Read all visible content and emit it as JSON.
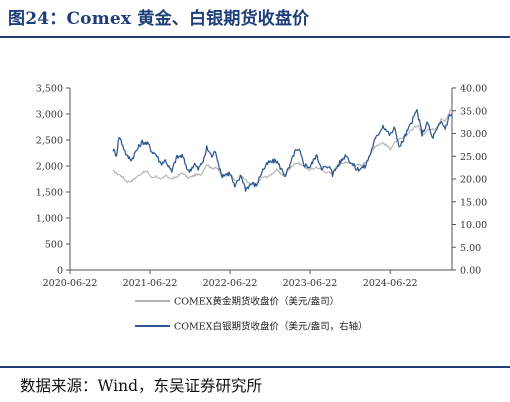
{
  "figure": {
    "title": "图24：Comex 黄金、白银期货收盘价",
    "source": "数据来源：Wind，东吴证券研究所"
  },
  "colors": {
    "gold_series": "#b3b3b3",
    "silver_series": "#2d5791",
    "title": "#1f3f7a",
    "axis": "#555555"
  },
  "chart_data": {
    "type": "line",
    "title": "",
    "xlabel": "",
    "ylabel": "",
    "y_left": {
      "min": 0,
      "max": 3500,
      "ticks": [
        0,
        500,
        1000,
        1500,
        2000,
        2500,
        3000,
        3500
      ],
      "tick_labels": [
        "0",
        "500",
        "1,000",
        "1,500",
        "2,000",
        "2,500",
        "3,000",
        "3,500"
      ]
    },
    "y_right": {
      "min": 0,
      "max": 40,
      "ticks": [
        0,
        5,
        10,
        15,
        20,
        25,
        30,
        35,
        40
      ],
      "tick_labels": [
        "0.00",
        "5.00",
        "10.00",
        "15.00",
        "20.00",
        "25.00",
        "30.00",
        "35.00",
        "40.00"
      ]
    },
    "x_axis": {
      "min": "2020-06-22",
      "max": "2025-03-31",
      "ticks": [
        "2020-06-22",
        "2021-06-22",
        "2022-06-22",
        "2023-06-22",
        "2024-06-22"
      ]
    },
    "legend_position": "bottom",
    "grid": false,
    "series": [
      {
        "name": "COMEX黄金期货收盘价（美元/盎司）",
        "axis": "left",
        "color": "#b3b3b3",
        "points": [
          [
            "2021-01-04",
            1900
          ],
          [
            "2021-01-25",
            1850
          ],
          [
            "2021-02-15",
            1800
          ],
          [
            "2021-03-08",
            1700
          ],
          [
            "2021-03-31",
            1715
          ],
          [
            "2021-04-20",
            1780
          ],
          [
            "2021-05-20",
            1880
          ],
          [
            "2021-06-10",
            1890
          ],
          [
            "2021-06-30",
            1770
          ],
          [
            "2021-07-20",
            1810
          ],
          [
            "2021-08-10",
            1730
          ],
          [
            "2021-09-01",
            1815
          ],
          [
            "2021-09-30",
            1755
          ],
          [
            "2021-10-20",
            1785
          ],
          [
            "2021-11-16",
            1870
          ],
          [
            "2021-12-15",
            1765
          ],
          [
            "2022-01-12",
            1825
          ],
          [
            "2022-02-10",
            1835
          ],
          [
            "2022-03-08",
            2040
          ],
          [
            "2022-03-31",
            1950
          ],
          [
            "2022-04-18",
            1985
          ],
          [
            "2022-05-16",
            1815
          ],
          [
            "2022-06-22",
            1840
          ],
          [
            "2022-07-20",
            1700
          ],
          [
            "2022-08-15",
            1790
          ],
          [
            "2022-09-27",
            1630
          ],
          [
            "2022-10-20",
            1640
          ],
          [
            "2022-11-15",
            1780
          ],
          [
            "2022-12-15",
            1800
          ],
          [
            "2023-01-20",
            1925
          ],
          [
            "2023-02-24",
            1810
          ],
          [
            "2023-03-15",
            1920
          ],
          [
            "2023-04-13",
            2055
          ],
          [
            "2023-05-04",
            2050
          ],
          [
            "2023-06-22",
            1920
          ],
          [
            "2023-07-20",
            1980
          ],
          [
            "2023-08-21",
            1900
          ],
          [
            "2023-09-29",
            1865
          ],
          [
            "2023-10-27",
            2010
          ],
          [
            "2023-12-04",
            2080
          ],
          [
            "2024-01-20",
            2020
          ],
          [
            "2024-02-14",
            2005
          ],
          [
            "2024-03-21",
            2180
          ],
          [
            "2024-04-12",
            2380
          ],
          [
            "2024-05-20",
            2450
          ],
          [
            "2024-06-22",
            2330
          ],
          [
            "2024-07-17",
            2470
          ],
          [
            "2024-08-20",
            2540
          ],
          [
            "2024-09-26",
            2690
          ],
          [
            "2024-10-30",
            2800
          ],
          [
            "2024-11-14",
            2570
          ],
          [
            "2024-12-11",
            2720
          ],
          [
            "2025-01-15",
            2700
          ],
          [
            "2025-02-10",
            2910
          ],
          [
            "2025-02-28",
            2860
          ],
          [
            "2025-03-20",
            3050
          ],
          [
            "2025-03-31",
            3120
          ]
        ]
      },
      {
        "name": "COMEX白银期货收盘价（美元/盎司，右轴）",
        "axis": "right",
        "color": "#2d5791",
        "points": [
          [
            "2021-01-04",
            26.5
          ],
          [
            "2021-01-20",
            25.3
          ],
          [
            "2021-02-01",
            29.4
          ],
          [
            "2021-02-18",
            27.4
          ],
          [
            "2021-03-08",
            25.0
          ],
          [
            "2021-03-31",
            24.3
          ],
          [
            "2021-04-20",
            26.2
          ],
          [
            "2021-05-18",
            28.2
          ],
          [
            "2021-06-15",
            27.6
          ],
          [
            "2021-06-30",
            26.1
          ],
          [
            "2021-07-20",
            25.4
          ],
          [
            "2021-08-10",
            23.4
          ],
          [
            "2021-09-01",
            24.1
          ],
          [
            "2021-09-29",
            21.5
          ],
          [
            "2021-10-20",
            24.7
          ],
          [
            "2021-11-16",
            25.1
          ],
          [
            "2021-12-15",
            21.6
          ],
          [
            "2022-01-12",
            23.3
          ],
          [
            "2022-01-28",
            22.1
          ],
          [
            "2022-02-24",
            24.4
          ],
          [
            "2022-03-08",
            26.9
          ],
          [
            "2022-03-31",
            25.0
          ],
          [
            "2022-04-18",
            26.1
          ],
          [
            "2022-05-13",
            20.8
          ],
          [
            "2022-06-22",
            21.3
          ],
          [
            "2022-07-14",
            18.2
          ],
          [
            "2022-08-12",
            20.8
          ],
          [
            "2022-09-01",
            17.8
          ],
          [
            "2022-09-30",
            19.1
          ],
          [
            "2022-10-20",
            18.5
          ],
          [
            "2022-11-15",
            21.7
          ],
          [
            "2022-12-15",
            23.6
          ],
          [
            "2023-01-20",
            24.0
          ],
          [
            "2023-02-28",
            20.8
          ],
          [
            "2023-03-20",
            22.5
          ],
          [
            "2023-04-13",
            26.0
          ],
          [
            "2023-05-04",
            26.2
          ],
          [
            "2023-05-26",
            23.2
          ],
          [
            "2023-06-22",
            22.6
          ],
          [
            "2023-07-20",
            25.2
          ],
          [
            "2023-08-14",
            22.6
          ],
          [
            "2023-09-29",
            22.3
          ],
          [
            "2023-10-03",
            21.0
          ],
          [
            "2023-10-27",
            23.0
          ],
          [
            "2023-12-04",
            25.4
          ],
          [
            "2023-12-20",
            24.0
          ],
          [
            "2024-01-22",
            22.1
          ],
          [
            "2024-02-28",
            22.7
          ],
          [
            "2024-03-21",
            25.3
          ],
          [
            "2024-04-12",
            28.4
          ],
          [
            "2024-05-20",
            31.8
          ],
          [
            "2024-06-22",
            29.6
          ],
          [
            "2024-07-10",
            31.2
          ],
          [
            "2024-08-05",
            27.0
          ],
          [
            "2024-09-26",
            32.3
          ],
          [
            "2024-10-22",
            35.1
          ],
          [
            "2024-11-14",
            30.0
          ],
          [
            "2024-12-11",
            32.4
          ],
          [
            "2024-12-30",
            29.0
          ],
          [
            "2025-01-20",
            30.6
          ],
          [
            "2025-02-10",
            32.6
          ],
          [
            "2025-02-28",
            31.2
          ],
          [
            "2025-03-20",
            34.0
          ],
          [
            "2025-03-31",
            34.3
          ]
        ]
      }
    ]
  }
}
